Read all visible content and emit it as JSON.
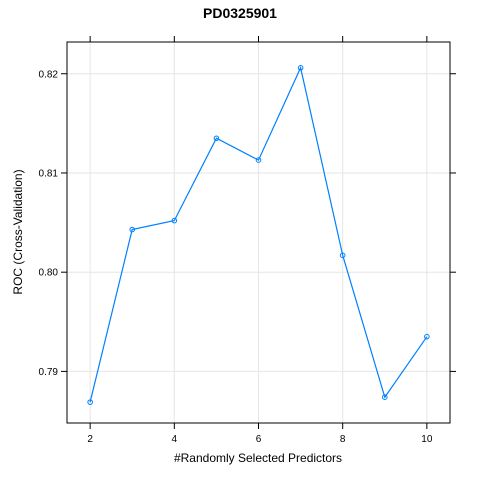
{
  "chart_data": {
    "type": "line",
    "title": "PD0325901",
    "xlabel": "#Randomly Selected Predictors",
    "ylabel": "ROC (Cross-Validation)",
    "x": [
      2,
      3,
      4,
      5,
      6,
      7,
      8,
      9,
      10
    ],
    "series": [
      {
        "values": [
          0.7869,
          0.8043,
          0.8052,
          0.8135,
          0.8113,
          0.8206,
          0.8017,
          0.7874,
          0.7935
        ]
      }
    ],
    "xlim": [
      1.45,
      10.55
    ],
    "ylim": [
      0.7848,
      0.8232
    ],
    "xticks": [
      2,
      4,
      6,
      8,
      10
    ],
    "xtick_labels": [
      "2",
      "4",
      "6",
      "8",
      "10"
    ],
    "yticks": [
      0.79,
      0.8,
      0.81,
      0.82
    ],
    "ytick_labels": [
      "0.79",
      "0.80",
      "0.81",
      "0.82"
    ],
    "grid": true,
    "colors": {
      "line": "#0080ff",
      "marker": "#0080ff",
      "grid": "#e6e6e6",
      "frame": "#000000"
    }
  }
}
